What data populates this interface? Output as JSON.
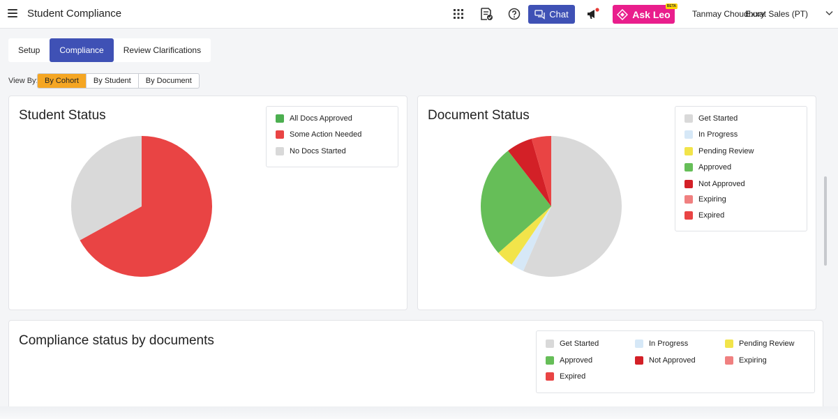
{
  "header": {
    "title": "Student Compliance",
    "chat_label": "Chat",
    "askleo_label": "Ask Leo",
    "askleo_badge": "BETA",
    "user_name": "Tanmay Choudhury",
    "org_name": "Exxat Sales (PT)",
    "icons": [
      "menu-icon",
      "apps-grid-icon",
      "document-check-icon",
      "help-icon",
      "chat-icon",
      "megaphone-icon",
      "chevron-down-icon"
    ]
  },
  "tabs": [
    {
      "label": "Setup",
      "active": false
    },
    {
      "label": "Compliance",
      "active": true
    },
    {
      "label": "Review Clarifications",
      "active": false
    }
  ],
  "view_by": {
    "label": "View By:",
    "options": [
      {
        "label": "By Cohort",
        "active": true
      },
      {
        "label": "By Student",
        "active": false
      },
      {
        "label": "By Document",
        "active": false
      }
    ]
  },
  "student_status": {
    "title": "Student Status",
    "legend": [
      "All Docs Approved",
      "Some Action Needed",
      "No Docs Started"
    ]
  },
  "document_status": {
    "title": "Document Status",
    "legend": [
      "Get Started",
      "In Progress",
      "Pending Review",
      "Approved",
      "Not Approved",
      "Expiring",
      "Expired"
    ]
  },
  "compliance_by_documents": {
    "title": "Compliance status by documents",
    "legend": [
      "Get Started",
      "In Progress",
      "Pending Review",
      "Approved",
      "Not Approved",
      "Expiring",
      "Expired"
    ]
  },
  "colors": {
    "primary": "#3f51b5",
    "accent_orange": "#f5a623",
    "askleo": "#e91e8c",
    "get_started": "#d9d9d9",
    "in_progress": "#d6e8f7",
    "pending_review": "#f2e44a",
    "approved": "#66be58",
    "not_approved": "#d32027",
    "expiring": "#f08080",
    "expired": "#e94444"
  },
  "chart_data": [
    {
      "type": "pie",
      "title": "Student Status",
      "categories": [
        "All Docs Approved",
        "Some Action Needed",
        "No Docs Started"
      ],
      "values": [
        0,
        67,
        33
      ],
      "colors": [
        "#4caf50",
        "#e94444",
        "#d9d9d9"
      ],
      "legend_position": "top-right"
    },
    {
      "type": "pie",
      "title": "Document Status",
      "categories": [
        "Get Started",
        "In Progress",
        "Pending Review",
        "Approved",
        "Not Approved",
        "Expiring",
        "Expired"
      ],
      "values": [
        56.5,
        3,
        4,
        26,
        6,
        0,
        4.5
      ],
      "colors": [
        "#d9d9d9",
        "#d6e8f7",
        "#f2e44a",
        "#66be58",
        "#d32027",
        "#f08080",
        "#e94444"
      ],
      "legend_position": "top-right"
    }
  ]
}
